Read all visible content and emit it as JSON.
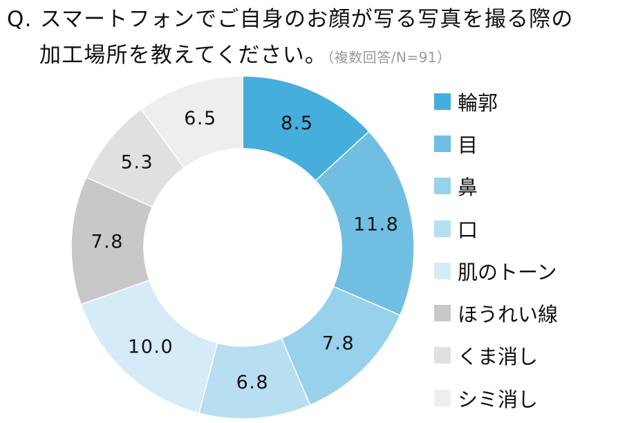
{
  "question": {
    "line1": "Q. スマートフォンでご自身のお顔が写る写真を撮る際の",
    "line2": "加工場所を教えてください。",
    "note": "（複数回答/N=91）"
  },
  "chart_data": {
    "type": "donut",
    "unit": "%",
    "categories": [
      "輪郭",
      "目",
      "鼻",
      "口",
      "肌のトーン",
      "ほうれい線",
      "くま消し",
      "シミ消し"
    ],
    "values": [
      8.5,
      11.8,
      7.8,
      6.8,
      10.0,
      7.8,
      5.3,
      6.5
    ],
    "value_labels": [
      "8.5",
      "11.8",
      "7.8",
      "6.8",
      "10.0",
      "7.8",
      "5.3",
      "6.5"
    ],
    "colors": [
      "#45aedc",
      "#70bfe3",
      "#98d1ec",
      "#b8def1",
      "#d5ebf7",
      "#c8c8c8",
      "#e0e0e0",
      "#eeeeee"
    ],
    "start": "12 o'clock",
    "direction": "clockwise",
    "legend_position": "right"
  }
}
